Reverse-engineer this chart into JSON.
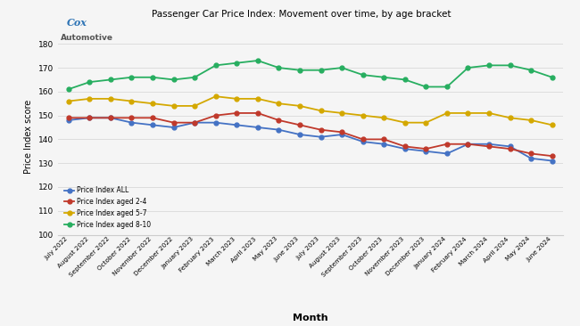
{
  "title": "Passenger Car Price Index: Movement over time, by age bracket",
  "xlabel": "Month",
  "ylabel": "Price Index score",
  "ylim": [
    100,
    182
  ],
  "yticks": [
    100,
    110,
    120,
    130,
    140,
    150,
    160,
    170,
    180
  ],
  "months": [
    "July 2022",
    "August 2022",
    "September 2022",
    "October 2022",
    "November 2022",
    "December 2022",
    "January 2023",
    "February 2023",
    "March 2023",
    "April 2023",
    "May 2023",
    "June 2023",
    "July 2023",
    "August 2023",
    "September 2023",
    "October 2023",
    "November 2023",
    "December 2023",
    "January 2024",
    "February 2024",
    "March 2024",
    "April 2024",
    "May 2024",
    "June 2024"
  ],
  "price_index_all": [
    148,
    149,
    149,
    147,
    146,
    145,
    147,
    147,
    146,
    145,
    144,
    142,
    141,
    142,
    139,
    138,
    136,
    135,
    134,
    138,
    138,
    137,
    132,
    131
  ],
  "price_index_2_4": [
    149,
    149,
    149,
    149,
    149,
    147,
    147,
    150,
    151,
    151,
    148,
    146,
    144,
    143,
    140,
    140,
    137,
    136,
    138,
    138,
    137,
    136,
    134,
    133
  ],
  "price_index_5_7": [
    156,
    157,
    157,
    156,
    155,
    154,
    154,
    158,
    157,
    157,
    155,
    154,
    152,
    151,
    150,
    149,
    147,
    147,
    151,
    151,
    151,
    149,
    148,
    146
  ],
  "price_index_8_10": [
    161,
    164,
    165,
    166,
    166,
    165,
    166,
    171,
    172,
    173,
    170,
    169,
    169,
    170,
    167,
    166,
    165,
    162,
    162,
    170,
    171,
    171,
    169,
    166
  ],
  "color_all": "#4472C4",
  "color_2_4": "#C0392B",
  "color_5_7": "#D4A800",
  "color_8_10": "#27AE60",
  "legend_labels": [
    "Price Index ALL",
    "Price Index aged 2-4",
    "Price Index aged 5-7",
    "Price Index aged 8-10"
  ],
  "marker": "o",
  "markersize": 3.5,
  "linewidth": 1.3,
  "cox_text_cox": "Cox",
  "cox_text_auto": "Automotive",
  "background_color": "#f5f5f5",
  "plot_bg_color": "#f5f5f5",
  "grid_color": "#dddddd",
  "border_color": "#cccccc"
}
